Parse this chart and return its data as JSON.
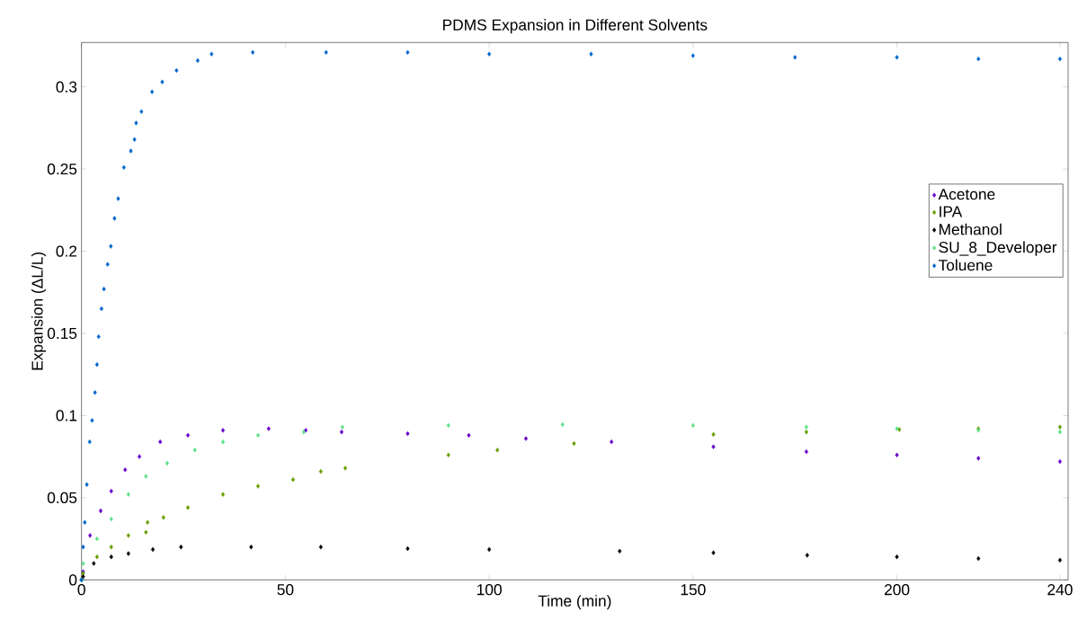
{
  "chart_data": {
    "type": "scatter",
    "title": "PDMS Expansion in Different Solvents",
    "xlabel": "Time (min)",
    "ylabel": "Expansion (ΔL/L)",
    "xlim": [
      0,
      242
    ],
    "ylim": [
      0,
      0.327
    ],
    "xticks": [
      0,
      50,
      100,
      150,
      200,
      240
    ],
    "yticks": [
      0,
      0.05,
      0.1,
      0.15,
      0.2,
      0.25,
      0.3
    ],
    "marker": "diamond",
    "legend": "right",
    "series": [
      {
        "name": "Acetone",
        "color": "#6600cc",
        "x": [
          0,
          0.4,
          2.1,
          4.7,
          7.3,
          10.7,
          14.2,
          19.3,
          26.1,
          34.7,
          45.9,
          55,
          63.8,
          80,
          95,
          109,
          130,
          155,
          177.8,
          200,
          220,
          240
        ],
        "values": [
          0,
          0.005,
          0.027,
          0.042,
          0.054,
          0.067,
          0.075,
          0.084,
          0.088,
          0.091,
          0.092,
          0.091,
          0.09,
          0.089,
          0.088,
          0.086,
          0.084,
          0.081,
          0.078,
          0.076,
          0.074,
          0.072
        ]
      },
      {
        "name": "IPA",
        "color": "#66a000",
        "x": [
          0,
          0.4,
          3.8,
          7.3,
          11.5,
          15.8,
          16.2,
          20.1,
          26.1,
          34.7,
          43.3,
          51.9,
          58.7,
          64.7,
          90,
          102,
          120.8,
          155,
          177.8,
          200.6,
          220,
          240
        ],
        "values": [
          0,
          0.004,
          0.014,
          0.02,
          0.027,
          0.029,
          0.035,
          0.038,
          0.044,
          0.052,
          0.057,
          0.061,
          0.066,
          0.068,
          0.076,
          0.079,
          0.083,
          0.0885,
          0.09,
          0.0915,
          0.092,
          0.093
        ]
      },
      {
        "name": "Methanol",
        "color": "#000000",
        "x": [
          0,
          0.4,
          3,
          7.3,
          11.5,
          17.5,
          24.4,
          41.6,
          58.7,
          80,
          100,
          132,
          155,
          178,
          200,
          220,
          240
        ],
        "values": [
          0,
          0.002,
          0.01,
          0.014,
          0.016,
          0.0185,
          0.02,
          0.02,
          0.02,
          0.019,
          0.0185,
          0.0175,
          0.0165,
          0.015,
          0.014,
          0.013,
          0.012
        ]
      },
      {
        "name": "SU_8_Developer",
        "color": "#5ee08a",
        "x": [
          0,
          0.4,
          3.8,
          7.3,
          11.5,
          15.8,
          21,
          27.8,
          34.7,
          43.3,
          54.5,
          64,
          90,
          118,
          150,
          177.8,
          200,
          220,
          240
        ],
        "values": [
          0,
          0.01,
          0.025,
          0.037,
          0.052,
          0.063,
          0.071,
          0.079,
          0.084,
          0.088,
          0.09,
          0.093,
          0.094,
          0.0945,
          0.094,
          0.093,
          0.092,
          0.091,
          0.09
        ]
      },
      {
        "name": "Toluene",
        "color": "#0066cc",
        "x": [
          0,
          0.4,
          0.8,
          1.3,
          2,
          2.6,
          3.3,
          3.8,
          4.2,
          4.9,
          5.5,
          6.4,
          7.2,
          8.1,
          9,
          10.4,
          12.1,
          13,
          13.4,
          14.7,
          17.3,
          19.8,
          23.3,
          28.5,
          31.9,
          42,
          60,
          80,
          100,
          125,
          150,
          175,
          200,
          220,
          240
        ],
        "values": [
          0,
          0.02,
          0.035,
          0.058,
          0.084,
          0.097,
          0.114,
          0.131,
          0.148,
          0.165,
          0.177,
          0.192,
          0.203,
          0.22,
          0.232,
          0.251,
          0.261,
          0.268,
          0.278,
          0.285,
          0.297,
          0.303,
          0.31,
          0.316,
          0.32,
          0.321,
          0.321,
          0.321,
          0.32,
          0.32,
          0.319,
          0.318,
          0.318,
          0.317,
          0.317
        ]
      }
    ]
  }
}
